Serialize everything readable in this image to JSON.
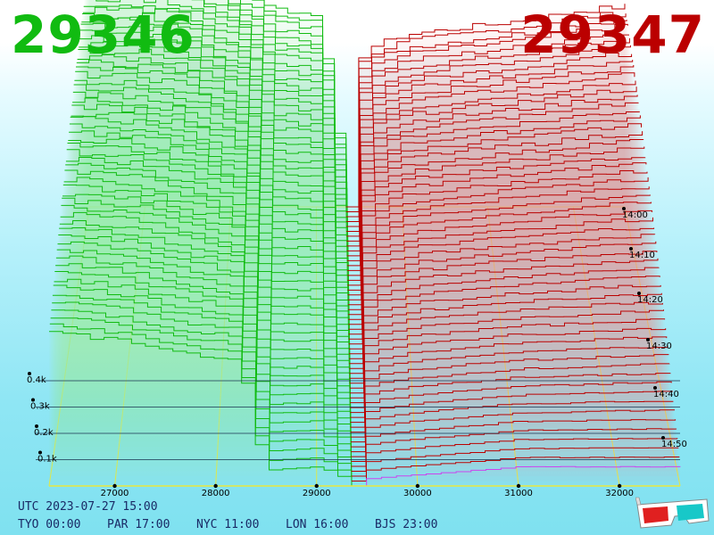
{
  "header": {
    "bid_price": "29346",
    "ask_price": "29347",
    "bid_color": "#11bb11",
    "ask_color": "#bb0000"
  },
  "footer": {
    "utc_line": "UTC 2023-07-27 15:00",
    "timezones": [
      {
        "label": "TYO 00:00"
      },
      {
        "label": "PAR 17:00"
      },
      {
        "label": "NYC 11:00"
      },
      {
        "label": "LON 16:00"
      },
      {
        "label": "BJS 23:00"
      }
    ]
  },
  "chart_data": {
    "type": "area",
    "subtype": "3d-order-book-depth",
    "x_axis": {
      "label": "",
      "ticks": [
        "27000",
        "28000",
        "29000",
        "30000",
        "31000",
        "32000"
      ],
      "range": [
        26350,
        32600
      ]
    },
    "depth_axis": {
      "label": "",
      "ticks": [
        "0.1k",
        "0.2k",
        "0.3k",
        "0.4k"
      ],
      "range": [
        0,
        0.45
      ]
    },
    "time_axis": {
      "label": "",
      "ticks": [
        "14:00",
        "14:10",
        "14:20",
        "14:30",
        "14:40",
        "14:50"
      ]
    },
    "mid_price": 29346.5,
    "snapshot_count": 58,
    "series": [
      {
        "name": "",
        "side": "bid",
        "color": "#11bb11",
        "newest_curve": [
          [
            26350,
            0.4
          ],
          [
            27000,
            0.38
          ],
          [
            27500,
            0.35
          ],
          [
            28200,
            0.33
          ],
          [
            28450,
            0.04
          ],
          [
            29000,
            0.05
          ],
          [
            29250,
            0.02
          ],
          [
            29346,
            0.0
          ]
        ],
        "oldest_curve": [
          [
            26350,
            0.95
          ],
          [
            27000,
            0.95
          ],
          [
            27500,
            0.93
          ],
          [
            28000,
            0.85
          ],
          [
            28500,
            0.76
          ],
          [
            29000,
            0.73
          ],
          [
            29346,
            0.0
          ]
        ]
      },
      {
        "name": "",
        "side": "ask",
        "color": "#bb0000",
        "newest_curve": [
          [
            29347,
            0.0
          ],
          [
            29500,
            0.02
          ],
          [
            30000,
            0.03
          ],
          [
            30500,
            0.04
          ],
          [
            31000,
            0.05
          ],
          [
            31500,
            0.05
          ],
          [
            32000,
            0.05
          ],
          [
            32600,
            0.05
          ]
        ],
        "oldest_curve": [
          [
            29347,
            0.0
          ],
          [
            29500,
            0.6
          ],
          [
            30000,
            0.66
          ],
          [
            30500,
            0.68
          ],
          [
            31000,
            0.7
          ],
          [
            31500,
            0.72
          ],
          [
            32000,
            0.75
          ],
          [
            32600,
            0.77
          ]
        ]
      }
    ],
    "latest_ask_color": "#cc44ee",
    "grid": true
  }
}
